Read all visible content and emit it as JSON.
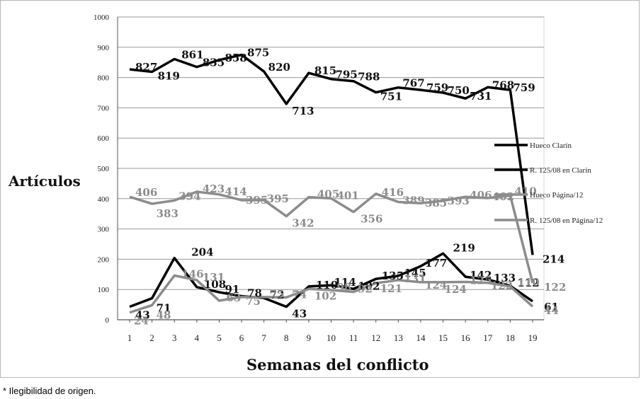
{
  "footnote": "* Ilegibilidad de origen.",
  "chart_data": {
    "type": "line",
    "xlabel": "Semanas del conflicto",
    "ylabel": "Artículos",
    "ylim": [
      0,
      1000
    ],
    "yticks": [
      0,
      100,
      200,
      300,
      400,
      500,
      600,
      700,
      800,
      900,
      1000
    ],
    "grid": true,
    "legend_position": "right",
    "categories": [
      "1",
      "2",
      "3",
      "4",
      "5",
      "6",
      "7",
      "8",
      "9",
      "10",
      "11",
      "12",
      "13",
      "14",
      "15",
      "16",
      "17",
      "18",
      "19"
    ],
    "series": [
      {
        "name": "Hueco Clarín",
        "color": "#000000",
        "values": [
          827,
          819,
          861,
          835,
          858,
          875,
          820,
          713,
          815,
          795,
          788,
          751,
          767,
          759,
          750,
          731,
          768,
          759,
          214
        ],
        "labels": [
          "827",
          "819",
          "861",
          "835",
          "858",
          "875",
          "820",
          "713",
          "815",
          "795",
          "788",
          "751",
          "767",
          "759",
          "750",
          "731",
          "768",
          "759",
          "214"
        ]
      },
      {
        "name": "R. 125/08 en Clarín",
        "color": "#000000",
        "values": [
          43,
          71,
          204,
          108,
          91,
          78,
          72,
          43,
          110,
          114,
          102,
          135,
          145,
          177,
          219,
          142,
          133,
          112,
          61
        ],
        "labels": [
          "43",
          "71",
          "204",
          "108",
          "91",
          "78",
          "72",
          "43",
          "110",
          "114",
          "102",
          "135",
          "145",
          "177",
          "219",
          "142",
          "133",
          "112",
          "61"
        ]
      },
      {
        "name": "Hueco Página/12",
        "color": "#8c8c8c",
        "values": [
          406,
          383,
          394,
          423,
          414,
          395,
          395,
          342,
          405,
          401,
          356,
          416,
          389,
          385,
          393,
          406,
          402,
          410,
          122
        ],
        "labels": [
          "406",
          "383",
          "394",
          "423",
          "414",
          "395",
          "395",
          "342",
          "405",
          "401",
          "356",
          "416",
          "389",
          "385",
          "393",
          "406",
          "402",
          "410",
          "122"
        ]
      },
      {
        "name": "R. 125/08 en Página/12",
        "color": "#8c8c8c",
        "values": [
          24,
          48,
          146,
          131,
          63,
          75,
          75,
          74,
          102,
          98,
          92,
          121,
          131,
          124,
          124,
          125,
          122,
          110,
          44
        ],
        "labels": [
          "24",
          "48",
          "146",
          "131",
          "63",
          "75",
          "75",
          "74",
          "102",
          "98",
          "92",
          "121",
          "131",
          "124",
          "124",
          "125",
          "122",
          "110",
          "44"
        ]
      }
    ]
  }
}
